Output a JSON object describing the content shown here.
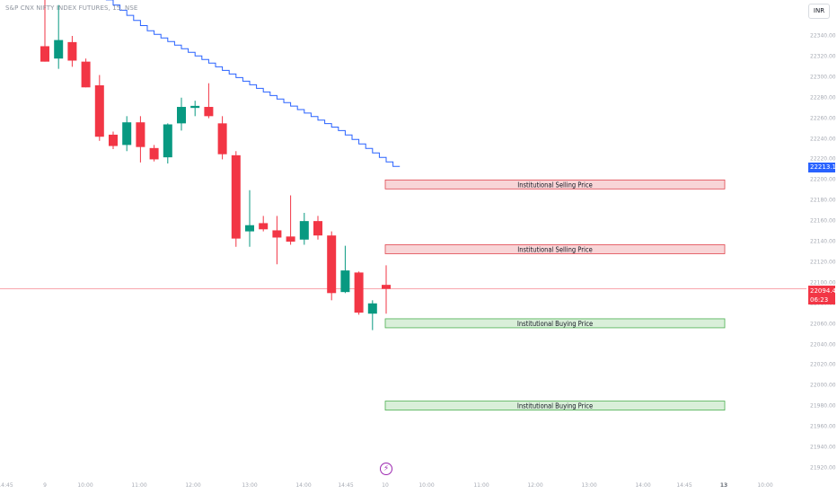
{
  "header": {
    "symbol_title": "S&P CNX NIFTY INDEX FUTURES, 15, NSE",
    "currency": "INR"
  },
  "colors": {
    "up": "#089981",
    "down": "#f23645",
    "trendline": "#2962ff",
    "sell_zone_fill": "#f8d5d7",
    "sell_zone_border": "#e0464f",
    "buy_zone_fill": "#d9efd9",
    "buy_zone_border": "#4caf50",
    "last_price_line": "#f23645",
    "event_icon": "#9c27b0"
  },
  "icons": {
    "event_marker": "lightning-icon"
  },
  "markers": {
    "trendline_value": "22213.16",
    "last_price": "22094.40",
    "countdown": "06:23"
  },
  "chart_data": {
    "type": "candlestick",
    "title": "S&P CNX NIFTY INDEX FUTURES, 15, NSE",
    "y_axis": {
      "range": [
        21920,
        22360
      ],
      "ticks": [
        "22340.00",
        "22320.00",
        "22300.00",
        "22280.00",
        "22260.00",
        "22240.00",
        "22220.00",
        "22200.00",
        "22180.00",
        "22160.00",
        "22140.00",
        "22120.00",
        "22100.00",
        "22080.00",
        "22060.00",
        "22040.00",
        "22020.00",
        "22000.00",
        "21980.00",
        "21960.00",
        "21940.00",
        "21920.00"
      ]
    },
    "x_axis": {
      "ticks": [
        {
          "label": "14:45",
          "bold": false
        },
        {
          "label": "9",
          "bold": false
        },
        {
          "label": "10:00",
          "bold": false
        },
        {
          "label": "11:00",
          "bold": false
        },
        {
          "label": "12:00",
          "bold": false
        },
        {
          "label": "13:00",
          "bold": false
        },
        {
          "label": "14:00",
          "bold": false
        },
        {
          "label": "14:45",
          "bold": false
        },
        {
          "label": "10",
          "bold": false
        },
        {
          "label": "10:00",
          "bold": false
        },
        {
          "label": "11:00",
          "bold": false
        },
        {
          "label": "12:00",
          "bold": false
        },
        {
          "label": "13:00",
          "bold": false
        },
        {
          "label": "14:00",
          "bold": false
        },
        {
          "label": "14:45",
          "bold": false
        },
        {
          "label": "13",
          "bold": true
        },
        {
          "label": "10:00",
          "bold": false
        }
      ]
    },
    "candles": [
      {
        "o": 22330,
        "h": 22375,
        "l": 22315,
        "c": 22315
      },
      {
        "o": 22318,
        "h": 22370,
        "l": 22308,
        "c": 22336
      },
      {
        "o": 22334,
        "h": 22340,
        "l": 22310,
        "c": 22316
      },
      {
        "o": 22315,
        "h": 22318,
        "l": 22290,
        "c": 22290
      },
      {
        "o": 22292,
        "h": 22302,
        "l": 22238,
        "c": 22242
      },
      {
        "o": 22244,
        "h": 22247,
        "l": 22230,
        "c": 22233
      },
      {
        "o": 22234,
        "h": 22262,
        "l": 22228,
        "c": 22256
      },
      {
        "o": 22256,
        "h": 22262,
        "l": 22217,
        "c": 22232
      },
      {
        "o": 22231,
        "h": 22234,
        "l": 22218,
        "c": 22220
      },
      {
        "o": 22222,
        "h": 22255,
        "l": 22216,
        "c": 22254
      },
      {
        "o": 22255,
        "h": 22280,
        "l": 22248,
        "c": 22271
      },
      {
        "o": 22270,
        "h": 22277,
        "l": 22262,
        "c": 22272
      },
      {
        "o": 22271,
        "h": 22294,
        "l": 22260,
        "c": 22262
      },
      {
        "o": 22255,
        "h": 22262,
        "l": 22220,
        "c": 22225
      },
      {
        "o": 22224,
        "h": 22228,
        "l": 22135,
        "c": 22143
      },
      {
        "o": 22150,
        "h": 22190,
        "l": 22135,
        "c": 22156
      },
      {
        "o": 22158,
        "h": 22165,
        "l": 22150,
        "c": 22152
      },
      {
        "o": 22151,
        "h": 22165,
        "l": 22118,
        "c": 22144
      },
      {
        "o": 22145,
        "h": 22185,
        "l": 22137,
        "c": 22140
      },
      {
        "o": 22142,
        "h": 22168,
        "l": 22137,
        "c": 22160
      },
      {
        "o": 22160,
        "h": 22165,
        "l": 22142,
        "c": 22146
      },
      {
        "o": 22146,
        "h": 22150,
        "l": 22083,
        "c": 22090
      },
      {
        "o": 22091,
        "h": 22136,
        "l": 22090,
        "c": 22112
      },
      {
        "o": 22110,
        "h": 22111,
        "l": 22069,
        "c": 22071
      },
      {
        "o": 22070,
        "h": 22083,
        "l": 22054,
        "c": 22080
      },
      {
        "o": 22098,
        "h": 22117,
        "l": 22070,
        "c": 22094
      }
    ],
    "trendline": {
      "name": "",
      "points": [
        [
          0,
          22425
        ],
        [
          3,
          22395
        ],
        [
          8,
          22345
        ],
        [
          13,
          22310
        ],
        [
          17,
          22282
        ],
        [
          22,
          22248
        ],
        [
          26,
          22213.16
        ]
      ]
    },
    "zones": [
      {
        "label": "Institutional Selling Price",
        "type": "sell",
        "top": 22200,
        "bottom": 22194
      },
      {
        "label": "Institutional Selling Price",
        "type": "sell",
        "top": 22137,
        "bottom": 22131
      },
      {
        "label": "Institutional Buying Price",
        "type": "buy",
        "top": 22065,
        "bottom": 22059
      },
      {
        "label": "Institutional Buying Price",
        "type": "buy",
        "top": 21985,
        "bottom": 21979
      }
    ],
    "last_price": 22094.4
  }
}
